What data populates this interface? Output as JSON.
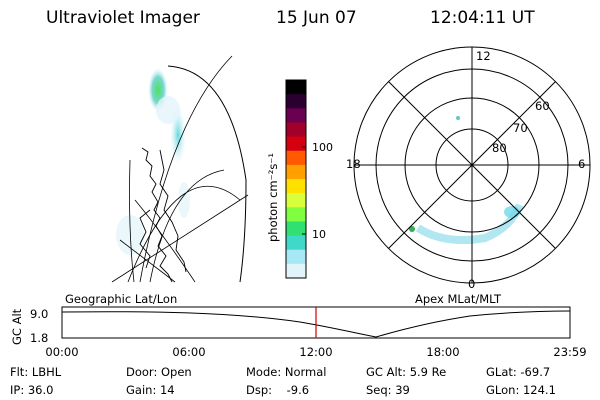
{
  "header": {
    "instrument": "Ultraviolet Imager",
    "date": "15 Jun 07",
    "time": "12:04:11 UT"
  },
  "geo_map": {
    "label": "Geographic Lat/Lon"
  },
  "colorbar": {
    "unit_label": "photon cm⁻²s⁻¹",
    "ticks": [
      "100",
      "10"
    ],
    "colors": [
      "#000000",
      "#2a0030",
      "#6a0050",
      "#a0002a",
      "#d40010",
      "#ff5a00",
      "#ffa000",
      "#ffe100",
      "#d8ff3c",
      "#80ff40",
      "#30e070",
      "#40d8c8",
      "#a8e8f4",
      "#e0f4fa"
    ]
  },
  "polar_plot": {
    "label": "Apex MLat/MLT",
    "mlt_labels": [
      "12",
      "18",
      "6",
      "0"
    ],
    "lat_labels": [
      "60",
      "70",
      "80"
    ]
  },
  "timeline": {
    "ylabel": "GC Alt",
    "yticks": [
      "9.0",
      "1.8"
    ],
    "xticks": [
      "00:00",
      "06:00",
      "12:00",
      "18:00",
      "23:59"
    ],
    "marker_time": "12:04",
    "marker_color": "#cc0000"
  },
  "info": {
    "flt": "Flt: LBHL",
    "door": "Door: Open",
    "mode": "Mode: Normal",
    "gc_alt": "GC Alt: 5.9 Re",
    "glat": "GLat: -69.7",
    "ip": "IP: 36.0",
    "gain": "Gain: 14",
    "dsp": "Dsp:    -9.6",
    "seq": "Seq: 39",
    "glon": "GLon: 124.1"
  }
}
